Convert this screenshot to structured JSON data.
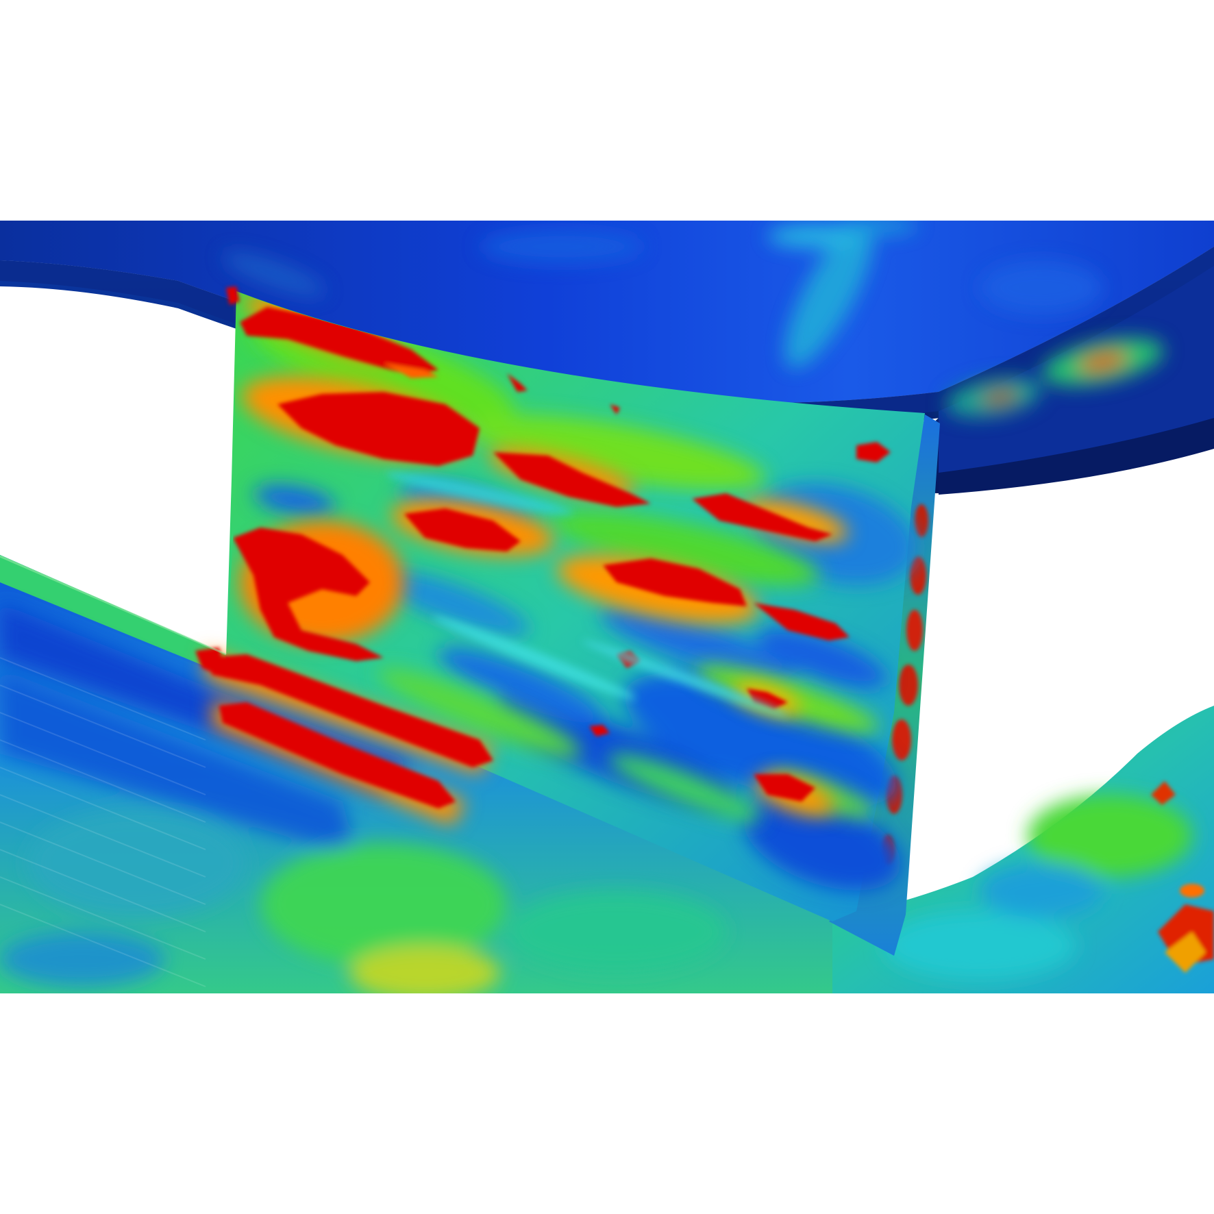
{
  "image": {
    "subject": "fea-stress-contour-render",
    "background_color": "#ffffff",
    "colormap": [
      "#00127a",
      "#0033cc",
      "#0a6ee6",
      "#18d0e0",
      "#22e07a",
      "#7ee020",
      "#f0e000",
      "#ff7a00",
      "#e00000"
    ],
    "low_color": "#0b2fb8",
    "high_color": "#e00000"
  }
}
